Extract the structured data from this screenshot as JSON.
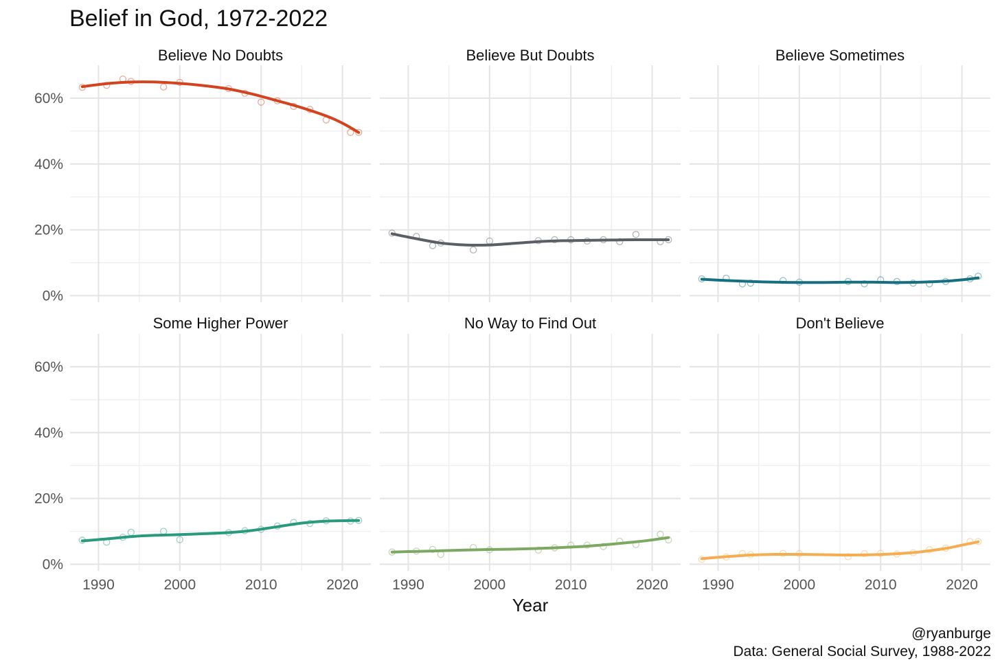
{
  "chart_data": {
    "type": "line",
    "title": "Belief in God, 1972-2022",
    "xlabel": "Year",
    "ylabel": "",
    "xlim": [
      1986.5,
      2023.5
    ],
    "ylim": [
      -2,
      70
    ],
    "x_ticks": [
      1990,
      2000,
      2010,
      2020
    ],
    "y_ticks": [
      0,
      20,
      40,
      60
    ],
    "y_tick_suffix": "%",
    "caption": [
      "@ryanburge",
      "Data: General Social Survey, 1988-2022"
    ],
    "panels": [
      {
        "name": "Believe No Doubts",
        "color": "#d3431f",
        "points": [
          [
            1988,
            63.3
          ],
          [
            1991,
            63.9
          ],
          [
            1993,
            65.8
          ],
          [
            1994,
            65.1
          ],
          [
            1998,
            63.4
          ],
          [
            2000,
            64.8
          ],
          [
            2006,
            62.9
          ],
          [
            2008,
            61.5
          ],
          [
            2010,
            58.8
          ],
          [
            2012,
            59.2
          ],
          [
            2014,
            57.5
          ],
          [
            2016,
            56.6
          ],
          [
            2018,
            53.4
          ],
          [
            2021,
            49.6
          ],
          [
            2022,
            49.6
          ]
        ],
        "smooth": [
          [
            1988,
            63.5
          ],
          [
            1991,
            64.4
          ],
          [
            1994,
            64.9
          ],
          [
            1997,
            64.9
          ],
          [
            2000,
            64.5
          ],
          [
            2003,
            63.8
          ],
          [
            2006,
            62.8
          ],
          [
            2009,
            61.2
          ],
          [
            2012,
            59.2
          ],
          [
            2015,
            57.1
          ],
          [
            2018,
            54.6
          ],
          [
            2020,
            52.4
          ],
          [
            2022,
            49.6
          ]
        ]
      },
      {
        "name": "Believe But Doubts",
        "color": "#5a5e65",
        "points": [
          [
            1988,
            19.0
          ],
          [
            1991,
            18.0
          ],
          [
            1993,
            15.2
          ],
          [
            1994,
            16.0
          ],
          [
            1998,
            13.9
          ],
          [
            2000,
            16.6
          ],
          [
            2006,
            16.7
          ],
          [
            2008,
            17.0
          ],
          [
            2010,
            17.0
          ],
          [
            2012,
            16.6
          ],
          [
            2014,
            17.0
          ],
          [
            2016,
            16.4
          ],
          [
            2018,
            18.6
          ],
          [
            2021,
            16.4
          ],
          [
            2022,
            17.0
          ]
        ],
        "smooth": [
          [
            1988,
            18.8
          ],
          [
            1991,
            17.3
          ],
          [
            1994,
            16.0
          ],
          [
            1997,
            15.4
          ],
          [
            2000,
            15.4
          ],
          [
            2003,
            15.9
          ],
          [
            2006,
            16.4
          ],
          [
            2009,
            16.7
          ],
          [
            2012,
            16.8
          ],
          [
            2015,
            16.9
          ],
          [
            2018,
            17.0
          ],
          [
            2022,
            17.0
          ]
        ]
      },
      {
        "name": "Believe Sometimes",
        "color": "#146f81",
        "points": [
          [
            1988,
            5.1
          ],
          [
            1991,
            5.3
          ],
          [
            1993,
            3.6
          ],
          [
            1994,
            3.8
          ],
          [
            1998,
            4.6
          ],
          [
            2000,
            4.1
          ],
          [
            2006,
            4.3
          ],
          [
            2008,
            3.6
          ],
          [
            2010,
            4.8
          ],
          [
            2012,
            4.3
          ],
          [
            2014,
            3.8
          ],
          [
            2016,
            3.6
          ],
          [
            2018,
            4.3
          ],
          [
            2021,
            5.1
          ],
          [
            2022,
            5.9
          ]
        ],
        "smooth": [
          [
            1988,
            5.0
          ],
          [
            1991,
            4.6
          ],
          [
            1994,
            4.3
          ],
          [
            1997,
            4.1
          ],
          [
            2000,
            4.0
          ],
          [
            2003,
            4.0
          ],
          [
            2006,
            4.1
          ],
          [
            2009,
            4.1
          ],
          [
            2012,
            4.0
          ],
          [
            2015,
            4.1
          ],
          [
            2018,
            4.4
          ],
          [
            2020,
            4.8
          ],
          [
            2022,
            5.4
          ]
        ]
      },
      {
        "name": "Some Higher Power",
        "color": "#2a9a7f",
        "points": [
          [
            1988,
            7.3
          ],
          [
            1991,
            6.7
          ],
          [
            1993,
            8.2
          ],
          [
            1994,
            9.7
          ],
          [
            1998,
            10.0
          ],
          [
            2000,
            7.5
          ],
          [
            2006,
            9.6
          ],
          [
            2008,
            10.2
          ],
          [
            2010,
            10.6
          ],
          [
            2012,
            11.6
          ],
          [
            2014,
            12.7
          ],
          [
            2016,
            12.4
          ],
          [
            2018,
            13.2
          ],
          [
            2021,
            13.1
          ],
          [
            2022,
            13.3
          ]
        ],
        "smooth": [
          [
            1988,
            7.1
          ],
          [
            1991,
            7.7
          ],
          [
            1994,
            8.4
          ],
          [
            1997,
            8.8
          ],
          [
            2000,
            9.0
          ],
          [
            2003,
            9.3
          ],
          [
            2006,
            9.6
          ],
          [
            2009,
            10.3
          ],
          [
            2012,
            11.4
          ],
          [
            2015,
            12.5
          ],
          [
            2018,
            13.1
          ],
          [
            2022,
            13.3
          ]
        ]
      },
      {
        "name": "No Way to Find Out",
        "color": "#7da861",
        "points": [
          [
            1988,
            3.7
          ],
          [
            1991,
            4.0
          ],
          [
            1993,
            4.5
          ],
          [
            1994,
            3.0
          ],
          [
            1998,
            5.1
          ],
          [
            2000,
            4.4
          ],
          [
            2006,
            4.3
          ],
          [
            2008,
            5.0
          ],
          [
            2010,
            5.8
          ],
          [
            2012,
            5.8
          ],
          [
            2014,
            5.4
          ],
          [
            2016,
            7.0
          ],
          [
            2018,
            6.0
          ],
          [
            2021,
            9.1
          ],
          [
            2022,
            7.4
          ]
        ],
        "smooth": [
          [
            1988,
            3.7
          ],
          [
            1991,
            3.9
          ],
          [
            1994,
            4.1
          ],
          [
            1997,
            4.3
          ],
          [
            2000,
            4.5
          ],
          [
            2003,
            4.6
          ],
          [
            2006,
            4.8
          ],
          [
            2009,
            5.1
          ],
          [
            2012,
            5.5
          ],
          [
            2015,
            6.1
          ],
          [
            2018,
            6.8
          ],
          [
            2020,
            7.4
          ],
          [
            2022,
            8.1
          ]
        ]
      },
      {
        "name": "Don't Believe",
        "color": "#f5ad52",
        "points": [
          [
            1988,
            1.5
          ],
          [
            1991,
            2.2
          ],
          [
            1993,
            3.2
          ],
          [
            1994,
            2.9
          ],
          [
            1998,
            3.3
          ],
          [
            2000,
            3.2
          ],
          [
            2006,
            2.3
          ],
          [
            2008,
            3.2
          ],
          [
            2010,
            3.3
          ],
          [
            2012,
            3.1
          ],
          [
            2014,
            3.5
          ],
          [
            2016,
            4.4
          ],
          [
            2018,
            4.9
          ],
          [
            2021,
            6.9
          ],
          [
            2022,
            6.9
          ]
        ],
        "smooth": [
          [
            1988,
            1.7
          ],
          [
            1991,
            2.3
          ],
          [
            1994,
            2.8
          ],
          [
            1997,
            3.0
          ],
          [
            2000,
            3.0
          ],
          [
            2003,
            2.9
          ],
          [
            2006,
            2.8
          ],
          [
            2009,
            2.9
          ],
          [
            2012,
            3.2
          ],
          [
            2015,
            3.8
          ],
          [
            2018,
            4.8
          ],
          [
            2020,
            5.8
          ],
          [
            2022,
            6.8
          ]
        ]
      }
    ]
  }
}
